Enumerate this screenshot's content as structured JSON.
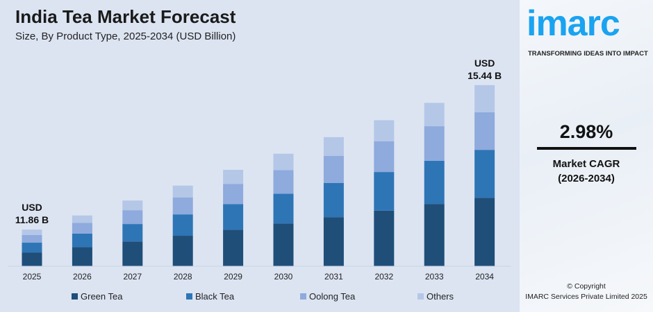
{
  "header": {
    "title": "India Tea Market Forecast",
    "subtitle": "Size, By Product Type, 2025-2034 (USD Billion)"
  },
  "chart_data": {
    "type": "bar",
    "stacked": true,
    "categories": [
      "2025",
      "2026",
      "2027",
      "2028",
      "2029",
      "2030",
      "2031",
      "2032",
      "2033",
      "2034"
    ],
    "totals": [
      11.86,
      12.21,
      12.58,
      12.95,
      13.34,
      13.74,
      14.15,
      14.57,
      15.0,
      15.44
    ],
    "series": [
      {
        "name": "Green Tea",
        "color": "#1f4e79",
        "values": [
          4.39,
          4.55,
          4.7,
          4.86,
          5.02,
          5.19,
          5.36,
          5.53,
          5.7,
          5.82
        ]
      },
      {
        "name": "Black Tea",
        "color": "#2e75b6",
        "values": [
          3.19,
          3.27,
          3.36,
          3.45,
          3.55,
          3.65,
          3.75,
          3.86,
          3.97,
          4.09
        ]
      },
      {
        "name": "Oolong Tea",
        "color": "#8faadc",
        "values": [
          2.51,
          2.58,
          2.66,
          2.74,
          2.82,
          2.9,
          2.99,
          3.08,
          3.18,
          3.21
        ]
      },
      {
        "name": "Others",
        "color": "#b4c7e7",
        "values": [
          1.77,
          1.81,
          1.86,
          1.9,
          1.95,
          2.0,
          2.05,
          2.1,
          2.15,
          2.32
        ]
      }
    ],
    "annotations": [
      {
        "category": "2025",
        "line1": "USD",
        "line2": "11.86 B"
      },
      {
        "category": "2034",
        "line1": "USD",
        "line2": "15.44 B"
      }
    ],
    "legend_position": "bottom",
    "grid": false
  },
  "sidebar": {
    "logo": "imarc",
    "tagline": "TRANSFORMING IDEAS INTO IMPACT",
    "cagr_value": "2.98%",
    "cagr_label": "Market CAGR",
    "cagr_period": "(2026-2034)",
    "copyright": "© Copyright",
    "company": "IMARC Services Private Limited 2025"
  }
}
